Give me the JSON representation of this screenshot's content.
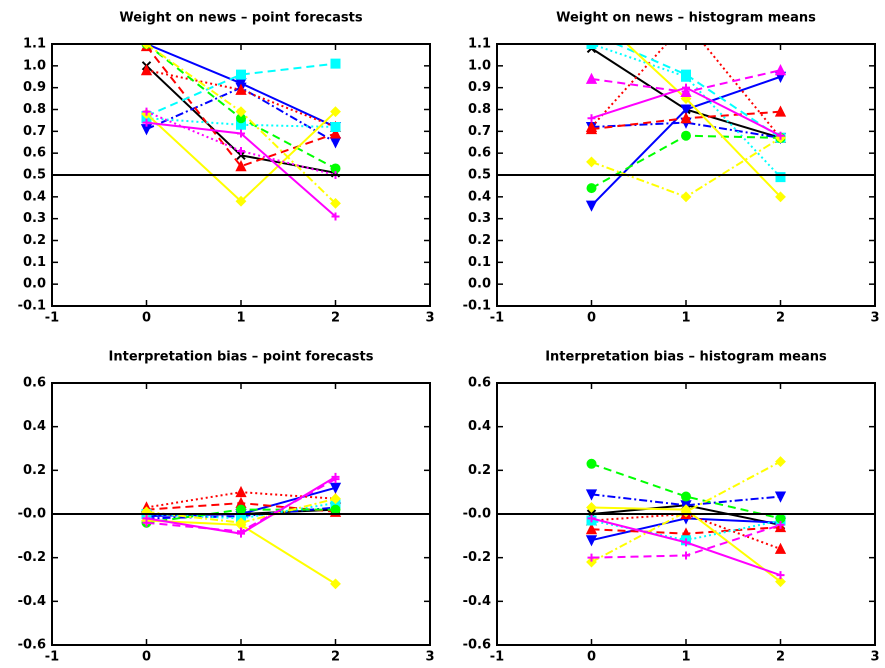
{
  "chart_data": [
    {
      "type": "line",
      "title": "Weight on news – point forecasts",
      "x": [
        0,
        1,
        2
      ],
      "xlim": [
        -1,
        3
      ],
      "xticks": [
        -1,
        0,
        1,
        2,
        3
      ],
      "ylim": [
        -0.1,
        1.1
      ],
      "yticks": [
        -0.1,
        {
          "value": 0,
          "label": "0.0"
        },
        0.1,
        0.2,
        0.3,
        0.4,
        0.5,
        0.6,
        0.7,
        0.8,
        0.9,
        {
          "value": 1,
          "label": "1.0"
        },
        1.1
      ],
      "hline": 0.5,
      "series": [
        {
          "color": "#000000",
          "dash": "solid",
          "marker": "x",
          "values": [
            1.0,
            0.59,
            0.51
          ]
        },
        {
          "color": "#0000ff",
          "dash": "solid",
          "marker": "tri-down",
          "values": [
            1.1,
            0.92,
            0.72
          ]
        },
        {
          "color": "#0000ff",
          "dash": "dashdot",
          "marker": "tri-down",
          "values": [
            0.71,
            0.9,
            0.65
          ]
        },
        {
          "color": "#ff0000",
          "dash": "dotted",
          "marker": "tri-up",
          "values": [
            0.98,
            0.89,
            0.72
          ]
        },
        {
          "color": "#ff0000",
          "dash": "dashed",
          "marker": "tri-up",
          "values": [
            1.09,
            0.54,
            0.69
          ]
        },
        {
          "color": "#00ffff",
          "dash": "dashed",
          "marker": "square",
          "values": [
            0.77,
            0.96,
            1.01
          ]
        },
        {
          "color": "#00ffff",
          "dash": "dotted",
          "marker": "square",
          "values": [
            0.76,
            0.73,
            0.72
          ]
        },
        {
          "color": "#00ff00",
          "dash": "dashed",
          "marker": "circle",
          "values": [
            1.1,
            0.76,
            0.53
          ]
        },
        {
          "color": "#ffff00",
          "dash": "solid",
          "marker": "diamond",
          "values": [
            0.78,
            0.38,
            0.79
          ]
        },
        {
          "color": "#ffff00",
          "dash": "dashdot",
          "marker": "diamond",
          "values": [
            1.1,
            0.79,
            0.37
          ]
        },
        {
          "color": "#ff00ff",
          "dash": "solid",
          "marker": "plus",
          "values": [
            0.74,
            0.69,
            0.31
          ]
        },
        {
          "color": "#ff00ff",
          "dash": "dotted",
          "marker": "plus",
          "values": [
            0.79,
            0.61,
            0.5
          ]
        }
      ]
    },
    {
      "type": "line",
      "title": "Weight on news – histogram means",
      "x": [
        0,
        1,
        2
      ],
      "xlim": [
        -1,
        3
      ],
      "xticks": [
        -1,
        0,
        1,
        2,
        3
      ],
      "ylim": [
        -0.1,
        1.1
      ],
      "yticks": [
        -0.1,
        {
          "value": 0,
          "label": "0.0"
        },
        0.1,
        0.2,
        0.3,
        0.4,
        0.5,
        0.6,
        0.7,
        0.8,
        0.9,
        {
          "value": 1,
          "label": "1.0"
        },
        1.1
      ],
      "hline": 0.5,
      "series": [
        {
          "color": "#000000",
          "dash": "solid",
          "marker": "x",
          "values": [
            1.08,
            0.8,
            0.67
          ]
        },
        {
          "color": "#0000ff",
          "dash": "solid",
          "marker": "tri-down",
          "values": [
            0.36,
            0.8,
            0.95
          ]
        },
        {
          "color": "#0000ff",
          "dash": "dashdot",
          "marker": "tri-down",
          "values": [
            0.72,
            0.74,
            0.67
          ]
        },
        {
          "color": "#ff0000",
          "dash": "dashed",
          "marker": "tri-up",
          "values": [
            0.71,
            0.76,
            0.79
          ]
        },
        {
          "color": "#ff0000",
          "dash": "dotted",
          "marker": "tri-up",
          "values": [
            0.72,
            1.2,
            0.67
          ]
        },
        {
          "color": "#00ffff",
          "dash": "dashed",
          "marker": "square",
          "values": [
            1.15,
            0.96,
            0.67
          ]
        },
        {
          "color": "#00ffff",
          "dash": "dotted",
          "marker": "square",
          "values": [
            1.1,
            0.95,
            0.49
          ]
        },
        {
          "color": "#00ff00",
          "dash": "dashed",
          "marker": "circle",
          "values": [
            0.44,
            0.68,
            0.67
          ]
        },
        {
          "color": "#ffff00",
          "dash": "dashdot",
          "marker": "diamond",
          "values": [
            0.56,
            0.4,
            0.67
          ]
        },
        {
          "color": "#ffff00",
          "dash": "solid",
          "marker": "diamond",
          "values": [
            1.25,
            0.85,
            0.4
          ]
        },
        {
          "color": "#ff00ff",
          "dash": "solid",
          "marker": "plus",
          "values": [
            0.76,
            0.9,
            0.68
          ]
        },
        {
          "color": "#ff00ff",
          "dash": "dashed",
          "marker": "tri-up",
          "values": [
            0.94,
            0.88,
            0.98
          ]
        }
      ]
    },
    {
      "type": "line",
      "title": "Interpretation bias – point forecasts",
      "x": [
        0,
        1,
        2
      ],
      "xlim": [
        -1,
        3
      ],
      "xticks": [
        -1,
        0,
        1,
        2,
        3
      ],
      "ylim": [
        -0.6,
        0.6
      ],
      "yticks": [
        -0.6,
        -0.4,
        -0.2,
        {
          "value": 0,
          "label": "-0.0"
        },
        0.2,
        0.4,
        0.6
      ],
      "hline": 0,
      "series": [
        {
          "color": "#000000",
          "dash": "solid",
          "marker": "x",
          "values": [
            0.0,
            0.0,
            0.02
          ]
        },
        {
          "color": "#0000ff",
          "dash": "solid",
          "marker": "tri-down",
          "values": [
            -0.01,
            0.0,
            0.12
          ]
        },
        {
          "color": "#0000ff",
          "dash": "dashdot",
          "marker": "tri-down",
          "values": [
            -0.02,
            -0.01,
            0.03
          ]
        },
        {
          "color": "#ff0000",
          "dash": "dotted",
          "marker": "tri-up",
          "values": [
            0.03,
            0.1,
            0.07
          ]
        },
        {
          "color": "#ff0000",
          "dash": "dashed",
          "marker": "tri-up",
          "values": [
            0.02,
            0.05,
            0.01
          ]
        },
        {
          "color": "#00ffff",
          "dash": "dotted",
          "marker": "square",
          "values": [
            0.0,
            -0.02,
            0.05
          ]
        },
        {
          "color": "#00ff00",
          "dash": "dashed",
          "marker": "circle",
          "values": [
            -0.04,
            0.02,
            0.02
          ]
        },
        {
          "color": "#ffff00",
          "dash": "solid",
          "marker": "diamond",
          "values": [
            -0.03,
            -0.05,
            -0.32
          ]
        },
        {
          "color": "#ffff00",
          "dash": "dashdot",
          "marker": "diamond",
          "values": [
            0.01,
            -0.04,
            0.07
          ]
        },
        {
          "color": "#ff00ff",
          "dash": "solid",
          "marker": "plus",
          "values": [
            -0.02,
            -0.09,
            0.17
          ]
        },
        {
          "color": "#ff00ff",
          "dash": "dashed",
          "marker": "plus",
          "values": [
            -0.04,
            -0.08,
            0.16
          ]
        }
      ]
    },
    {
      "type": "line",
      "title": "Interpretation bias – histogram means",
      "x": [
        0,
        1,
        2
      ],
      "xlim": [
        -1,
        3
      ],
      "xticks": [
        -1,
        0,
        1,
        2,
        3
      ],
      "ylim": [
        -0.6,
        0.6
      ],
      "yticks": [
        -0.6,
        -0.4,
        -0.2,
        {
          "value": 0,
          "label": "-0.0"
        },
        0.2,
        0.4,
        0.6
      ],
      "hline": 0,
      "series": [
        {
          "color": "#000000",
          "dash": "solid",
          "marker": "x",
          "values": [
            0.0,
            0.04,
            -0.05
          ]
        },
        {
          "color": "#0000ff",
          "dash": "solid",
          "marker": "tri-down",
          "values": [
            -0.12,
            -0.02,
            -0.04
          ]
        },
        {
          "color": "#0000ff",
          "dash": "dashdot",
          "marker": "tri-down",
          "values": [
            0.09,
            0.04,
            0.08
          ]
        },
        {
          "color": "#ff0000",
          "dash": "dotted",
          "marker": "tri-up",
          "values": [
            -0.03,
            0.0,
            -0.16
          ]
        },
        {
          "color": "#ff0000",
          "dash": "dashed",
          "marker": "tri-up",
          "values": [
            -0.07,
            -0.09,
            -0.06
          ]
        },
        {
          "color": "#00ffff",
          "dash": "dotted",
          "marker": "square",
          "values": [
            -0.03,
            -0.12,
            -0.03
          ]
        },
        {
          "color": "#00ff00",
          "dash": "dashed",
          "marker": "circle",
          "values": [
            0.23,
            0.08,
            -0.02
          ]
        },
        {
          "color": "#ffff00",
          "dash": "solid",
          "marker": "diamond",
          "values": [
            0.03,
            0.02,
            -0.31
          ]
        },
        {
          "color": "#ffff00",
          "dash": "dashdot",
          "marker": "diamond",
          "values": [
            -0.22,
            0.01,
            0.24
          ]
        },
        {
          "color": "#ff00ff",
          "dash": "solid",
          "marker": "plus",
          "values": [
            -0.02,
            -0.13,
            -0.28
          ]
        },
        {
          "color": "#ff00ff",
          "dash": "dashed",
          "marker": "plus",
          "values": [
            -0.2,
            -0.19,
            -0.05
          ]
        }
      ]
    }
  ]
}
